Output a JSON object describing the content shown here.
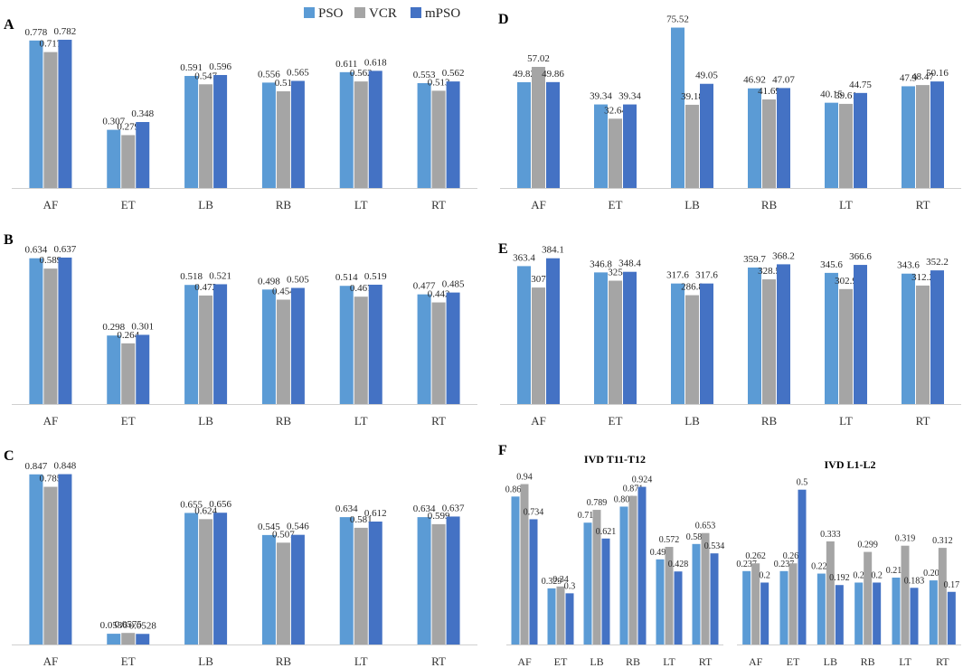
{
  "legend": [
    {
      "name": "PSO",
      "color": "#5B9BD5"
    },
    {
      "name": "VCR",
      "color": "#A5A5A5"
    },
    {
      "name": "mPSO",
      "color": "#4472C4"
    }
  ],
  "chart_data": [
    {
      "id": "A",
      "type": "bar",
      "label": "A",
      "categories": [
        "AF",
        "ET",
        "LB",
        "RB",
        "LT",
        "RT"
      ],
      "ylim": [
        0,
        0.82
      ],
      "series": [
        {
          "name": "PSO",
          "values": [
            0.778,
            0.307,
            0.591,
            0.556,
            0.611,
            0.553
          ],
          "labels": [
            "0.778",
            "0.307",
            "0.591",
            "0.556",
            "0.611",
            "0.553"
          ]
        },
        {
          "name": "VCR",
          "values": [
            0.717,
            0.279,
            0.547,
            0.51,
            0.562,
            0.513
          ],
          "labels": [
            "0.717",
            "0.279",
            "0.547",
            "0.51",
            "0.562",
            "0.513"
          ]
        },
        {
          "name": "mPSO",
          "values": [
            0.782,
            0.348,
            0.596,
            0.565,
            0.618,
            0.562
          ],
          "labels": [
            "0.782",
            "0.348",
            "0.596",
            "0.565",
            "0.618",
            "0.562"
          ]
        }
      ]
    },
    {
      "id": "B",
      "type": "bar",
      "label": "B",
      "categories": [
        "AF",
        "ET",
        "LB",
        "RB",
        "LT",
        "RT"
      ],
      "ylim": [
        0,
        0.68
      ],
      "series": [
        {
          "name": "PSO",
          "values": [
            0.634,
            0.298,
            0.518,
            0.498,
            0.514,
            0.477
          ],
          "labels": [
            "0.634",
            "0.298",
            "0.518",
            "0.498",
            "0.514",
            "0.477"
          ]
        },
        {
          "name": "VCR",
          "values": [
            0.589,
            0.264,
            0.472,
            0.454,
            0.467,
            0.442
          ],
          "labels": [
            "0.589",
            "0.264",
            "0.472",
            "0.454",
            "0.467",
            "0.442"
          ]
        },
        {
          "name": "mPSO",
          "values": [
            0.637,
            0.301,
            0.521,
            0.505,
            0.519,
            0.485
          ],
          "labels": [
            "0.637",
            "0.301",
            "0.521",
            "0.505",
            "0.519",
            "0.485"
          ]
        }
      ]
    },
    {
      "id": "C",
      "type": "bar",
      "label": "C",
      "categories": [
        "AF",
        "ET",
        "LB",
        "RB",
        "LT",
        "RT"
      ],
      "ylim": [
        0,
        0.9
      ],
      "series": [
        {
          "name": "PSO",
          "values": [
            0.847,
            0.0536,
            0.655,
            0.545,
            0.634,
            0.634
          ],
          "labels": [
            "0.847",
            "0.0536",
            "0.655",
            "0.545",
            "0.634",
            "0.634"
          ]
        },
        {
          "name": "VCR",
          "values": [
            0.785,
            0.0575,
            0.624,
            0.507,
            0.581,
            0.599
          ],
          "labels": [
            "0.785",
            "0.0575",
            "0.624",
            "0.507",
            "0.581",
            "0.599"
          ]
        },
        {
          "name": "mPSO",
          "values": [
            0.848,
            0.0528,
            0.656,
            0.546,
            0.612,
            0.637
          ],
          "labels": [
            "0.848",
            "0.0528",
            "0.656",
            "0.546",
            "0.612",
            "0.637"
          ]
        }
      ]
    },
    {
      "id": "D",
      "type": "bar",
      "label": "D",
      "categories": [
        "AF",
        "ET",
        "LB",
        "RB",
        "LT",
        "RT"
      ],
      "ylim": [
        0,
        80
      ],
      "series": [
        {
          "name": "PSO",
          "values": [
            49.82,
            39.34,
            75.52,
            46.92,
            40.15,
            47.9
          ],
          "labels": [
            "49.82",
            "39.34",
            "75.52",
            "46.92",
            "40.15",
            "47.9"
          ]
        },
        {
          "name": "VCR",
          "values": [
            57.02,
            32.64,
            39.18,
            41.69,
            39.61,
            48.47
          ],
          "labels": [
            "57.02",
            "32.64",
            "39.18",
            "41.69",
            "39.61",
            "48.47"
          ]
        },
        {
          "name": "mPSO",
          "values": [
            49.86,
            39.34,
            49.05,
            47.07,
            44.75,
            50.16
          ],
          "labels": [
            "49.86",
            "39.34",
            "49.05",
            "47.07",
            "44.75",
            "50.16"
          ]
        }
      ]
    },
    {
      "id": "E",
      "type": "bar",
      "label": "E",
      "categories": [
        "AF",
        "ET",
        "LB",
        "RB",
        "LT",
        "RT"
      ],
      "ylim": [
        0,
        412
      ],
      "series": [
        {
          "name": "PSO",
          "values": [
            363.4,
            346.8,
            317.6,
            359.7,
            345.6,
            343.6
          ],
          "labels": [
            "363.4",
            "346.8",
            "317.6",
            "359.7",
            "345.6",
            "343.6"
          ]
        },
        {
          "name": "VCR",
          "values": [
            307,
            325,
            286.8,
            328.5,
            302.9,
            312.2
          ],
          "labels": [
            "307",
            "325",
            "286.8",
            "328.5",
            "302.9",
            "312.2"
          ]
        },
        {
          "name": "mPSO",
          "values": [
            384.1,
            348.4,
            317.6,
            368.2,
            366.6,
            352.2
          ],
          "labels": [
            "384.1",
            "348.4",
            "317.6",
            "368.2",
            "366.6",
            "352.2"
          ]
        }
      ]
    },
    {
      "id": "F1",
      "type": "bar",
      "label": "F",
      "title": "IVD T11-T12",
      "categories": [
        "AF",
        "ET",
        "LB",
        "RB",
        "LT",
        "RT"
      ],
      "ylim": [
        0,
        0.98
      ],
      "series": [
        {
          "name": "PSO",
          "values": [
            0.867,
            0.329,
            0.714,
            0.808,
            0.499,
            0.589
          ],
          "labels": [
            "0.867",
            "0.329",
            "0.714",
            "0.808",
            "0.499",
            "0.589"
          ]
        },
        {
          "name": "VCR",
          "values": [
            0.94,
            0.34,
            0.789,
            0.871,
            0.572,
            0.653
          ],
          "labels": [
            "0.94",
            "0.34",
            "0.789",
            "0.871",
            "0.572",
            "0.653"
          ]
        },
        {
          "name": "mPSO",
          "values": [
            0.734,
            0.3,
            0.621,
            0.924,
            0.428,
            0.534
          ],
          "labels": [
            "0.734",
            "0.3",
            "0.621",
            "0.924",
            "0.428",
            "0.534"
          ]
        }
      ]
    },
    {
      "id": "F2",
      "type": "bar",
      "title": "IVD L1-L2",
      "categories": [
        "AF",
        "ET",
        "LB",
        "RB",
        "LT",
        "RT"
      ],
      "ylim": [
        0,
        0.54
      ],
      "series": [
        {
          "name": "PSO",
          "values": [
            0.237,
            0.237,
            0.229,
            0.2,
            0.216,
            0.207
          ],
          "labels": [
            "0.237",
            "0.237",
            "0.229",
            "0.2",
            "0.216",
            "0.207"
          ]
        },
        {
          "name": "VCR",
          "values": [
            0.262,
            0.262,
            0.333,
            0.299,
            0.319,
            0.312
          ],
          "labels": [
            "0.262",
            "0.262",
            "0.333",
            "0.299",
            "0.319",
            "0.312"
          ]
        },
        {
          "name": "mPSO",
          "values": [
            0.2,
            0.5,
            0.192,
            0.2,
            0.183,
            0.17
          ],
          "labels": [
            "0.2",
            "0.5",
            "0.192",
            "0.2",
            "0.183",
            "0.17"
          ]
        }
      ]
    }
  ]
}
